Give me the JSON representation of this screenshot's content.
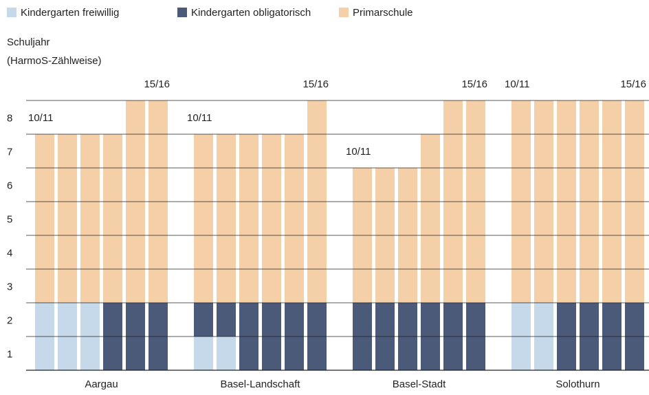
{
  "chart_data": {
    "type": "stacked_bar",
    "y_label": [
      "Schuljahr",
      "(HarmoS-Zählweise)"
    ],
    "categories": [
      "Aargau",
      "Basel-Landschaft",
      "Basel-Stadt",
      "Solothurn"
    ],
    "bar_labels": [
      [
        "10/11",
        null,
        null,
        null,
        null,
        "15/16"
      ],
      [
        "10/11",
        null,
        null,
        null,
        null,
        "15/16"
      ],
      [
        "10/11",
        null,
        null,
        null,
        null,
        "15/16"
      ],
      [
        "10/11",
        null,
        null,
        null,
        null,
        "15/16"
      ]
    ],
    "series": [
      {
        "name": "Kindergarten freiwillig",
        "color": "#c5d9ea",
        "values": [
          [
            2,
            2,
            2,
            0,
            0,
            0
          ],
          [
            1,
            1,
            0,
            0,
            0,
            0
          ],
          [
            0,
            0,
            0,
            0,
            0,
            0
          ],
          [
            2,
            2,
            0,
            0,
            0,
            0
          ]
        ]
      },
      {
        "name": "Kindergarten obligatorisch",
        "color": "#4a5a78",
        "values": [
          [
            0,
            0,
            0,
            2,
            2,
            2
          ],
          [
            1,
            1,
            2,
            2,
            2,
            2
          ],
          [
            2,
            2,
            2,
            2,
            2,
            2
          ],
          [
            0,
            0,
            2,
            2,
            2,
            2
          ]
        ]
      },
      {
        "name": "Primarschule",
        "color": "#f5cfa8",
        "values": [
          [
            5,
            5,
            5,
            5,
            6,
            6
          ],
          [
            5,
            5,
            5,
            5,
            5,
            6
          ],
          [
            4,
            4,
            4,
            5,
            6,
            6
          ],
          [
            6,
            6,
            6,
            6,
            6,
            6
          ]
        ]
      }
    ],
    "ylim": [
      0,
      8
    ],
    "yticks": [
      {
        "value": 0.5,
        "label": "1"
      },
      {
        "value": 1.5,
        "label": "2"
      },
      {
        "value": 2.5,
        "label": "3"
      },
      {
        "value": 3.5,
        "label": "4"
      },
      {
        "value": 4.5,
        "label": "5"
      },
      {
        "value": 5.5,
        "label": "6"
      },
      {
        "value": 6.5,
        "label": "7"
      },
      {
        "value": 7.5,
        "label": "8"
      }
    ],
    "ygrid": [
      0,
      1,
      2,
      3,
      4,
      5,
      6,
      7,
      8
    ]
  }
}
